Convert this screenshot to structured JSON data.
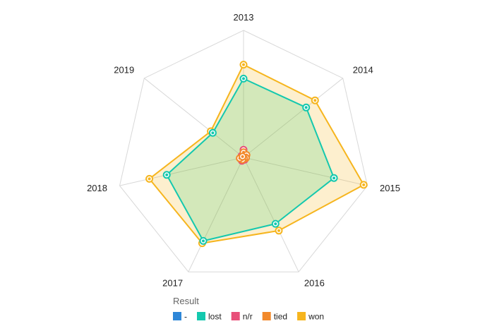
{
  "chart_data": {
    "type": "radar",
    "categories": [
      "2013",
      "2014",
      "2015",
      "2016",
      "2017",
      "2018",
      "2019"
    ],
    "rmax": 100,
    "grid": true,
    "legend": {
      "title": "Result",
      "position": "bottom",
      "items": [
        "-",
        "lost",
        "n/r",
        "tied",
        "won"
      ]
    },
    "series": [
      {
        "name": "won",
        "color": "#F6B51E",
        "values": [
          73,
          72,
          97,
          64,
          75,
          76,
          33
        ]
      },
      {
        "name": "lost",
        "color": "#14C8AE",
        "values": [
          62,
          63,
          73,
          58,
          73,
          62,
          31
        ]
      },
      {
        "name": "-",
        "color": "#2E87D8",
        "values": [
          0,
          0,
          0,
          0,
          0,
          0,
          0
        ]
      },
      {
        "name": "n/r",
        "color": "#E8507A",
        "values": [
          6,
          2,
          1,
          2,
          3,
          1,
          2
        ]
      },
      {
        "name": "tied",
        "color": "#F2892B",
        "values": [
          4,
          3,
          2,
          1,
          2,
          3,
          1
        ]
      }
    ]
  }
}
